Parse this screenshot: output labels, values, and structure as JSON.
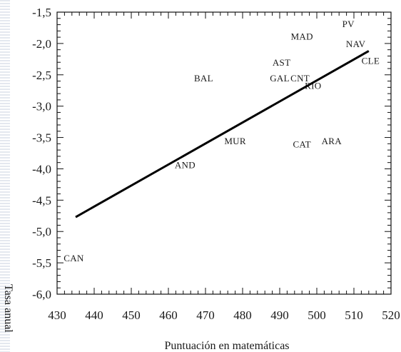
{
  "chart_data": {
    "type": "scatter",
    "xlabel": "Puntuación en matemáticas",
    "ylabel": "Tasa anual",
    "xlim": [
      430,
      520
    ],
    "ylim": [
      -6.0,
      -1.5
    ],
    "x_ticks": [
      430,
      440,
      450,
      460,
      470,
      480,
      490,
      500,
      510,
      520
    ],
    "x_tick_labels": [
      "430",
      "440",
      "450",
      "460",
      "470",
      "480",
      "490",
      "500",
      "510",
      "520"
    ],
    "y_ticks": [
      -1.5,
      -2.0,
      -2.5,
      -3.0,
      -3.5,
      -4.0,
      -4.5,
      -5.0,
      -5.5,
      -6.0
    ],
    "y_tick_labels": [
      "-1,5",
      "-2,0",
      "-2,5",
      "-3,0",
      "-3,5",
      "-4,0",
      "-4,5",
      "-5,0",
      "-5,5",
      "-6,0"
    ],
    "grid": false,
    "points": [
      {
        "label": "PV",
        "x": 508.5,
        "y": -1.68
      },
      {
        "label": "MAD",
        "x": 496.0,
        "y": -1.88
      },
      {
        "label": "NAV",
        "x": 510.5,
        "y": -2.0
      },
      {
        "label": "CLE",
        "x": 514.5,
        "y": -2.27
      },
      {
        "label": "AST",
        "x": 490.5,
        "y": -2.3
      },
      {
        "label": "BAL",
        "x": 469.5,
        "y": -2.55
      },
      {
        "label": "GAL",
        "x": 490.0,
        "y": -2.55
      },
      {
        "label": "CNT",
        "x": 495.5,
        "y": -2.55
      },
      {
        "label": "RIO",
        "x": 499.0,
        "y": -2.67
      },
      {
        "label": "MUR",
        "x": 478.0,
        "y": -3.55
      },
      {
        "label": "CAT",
        "x": 496.0,
        "y": -3.6
      },
      {
        "label": "ARA",
        "x": 504.0,
        "y": -3.55
      },
      {
        "label": "AND",
        "x": 464.5,
        "y": -3.93
      },
      {
        "label": "CAN",
        "x": 434.5,
        "y": -5.42
      }
    ],
    "trend_line": {
      "x": [
        435,
        514
      ],
      "y": [
        -4.77,
        -2.12
      ]
    }
  }
}
